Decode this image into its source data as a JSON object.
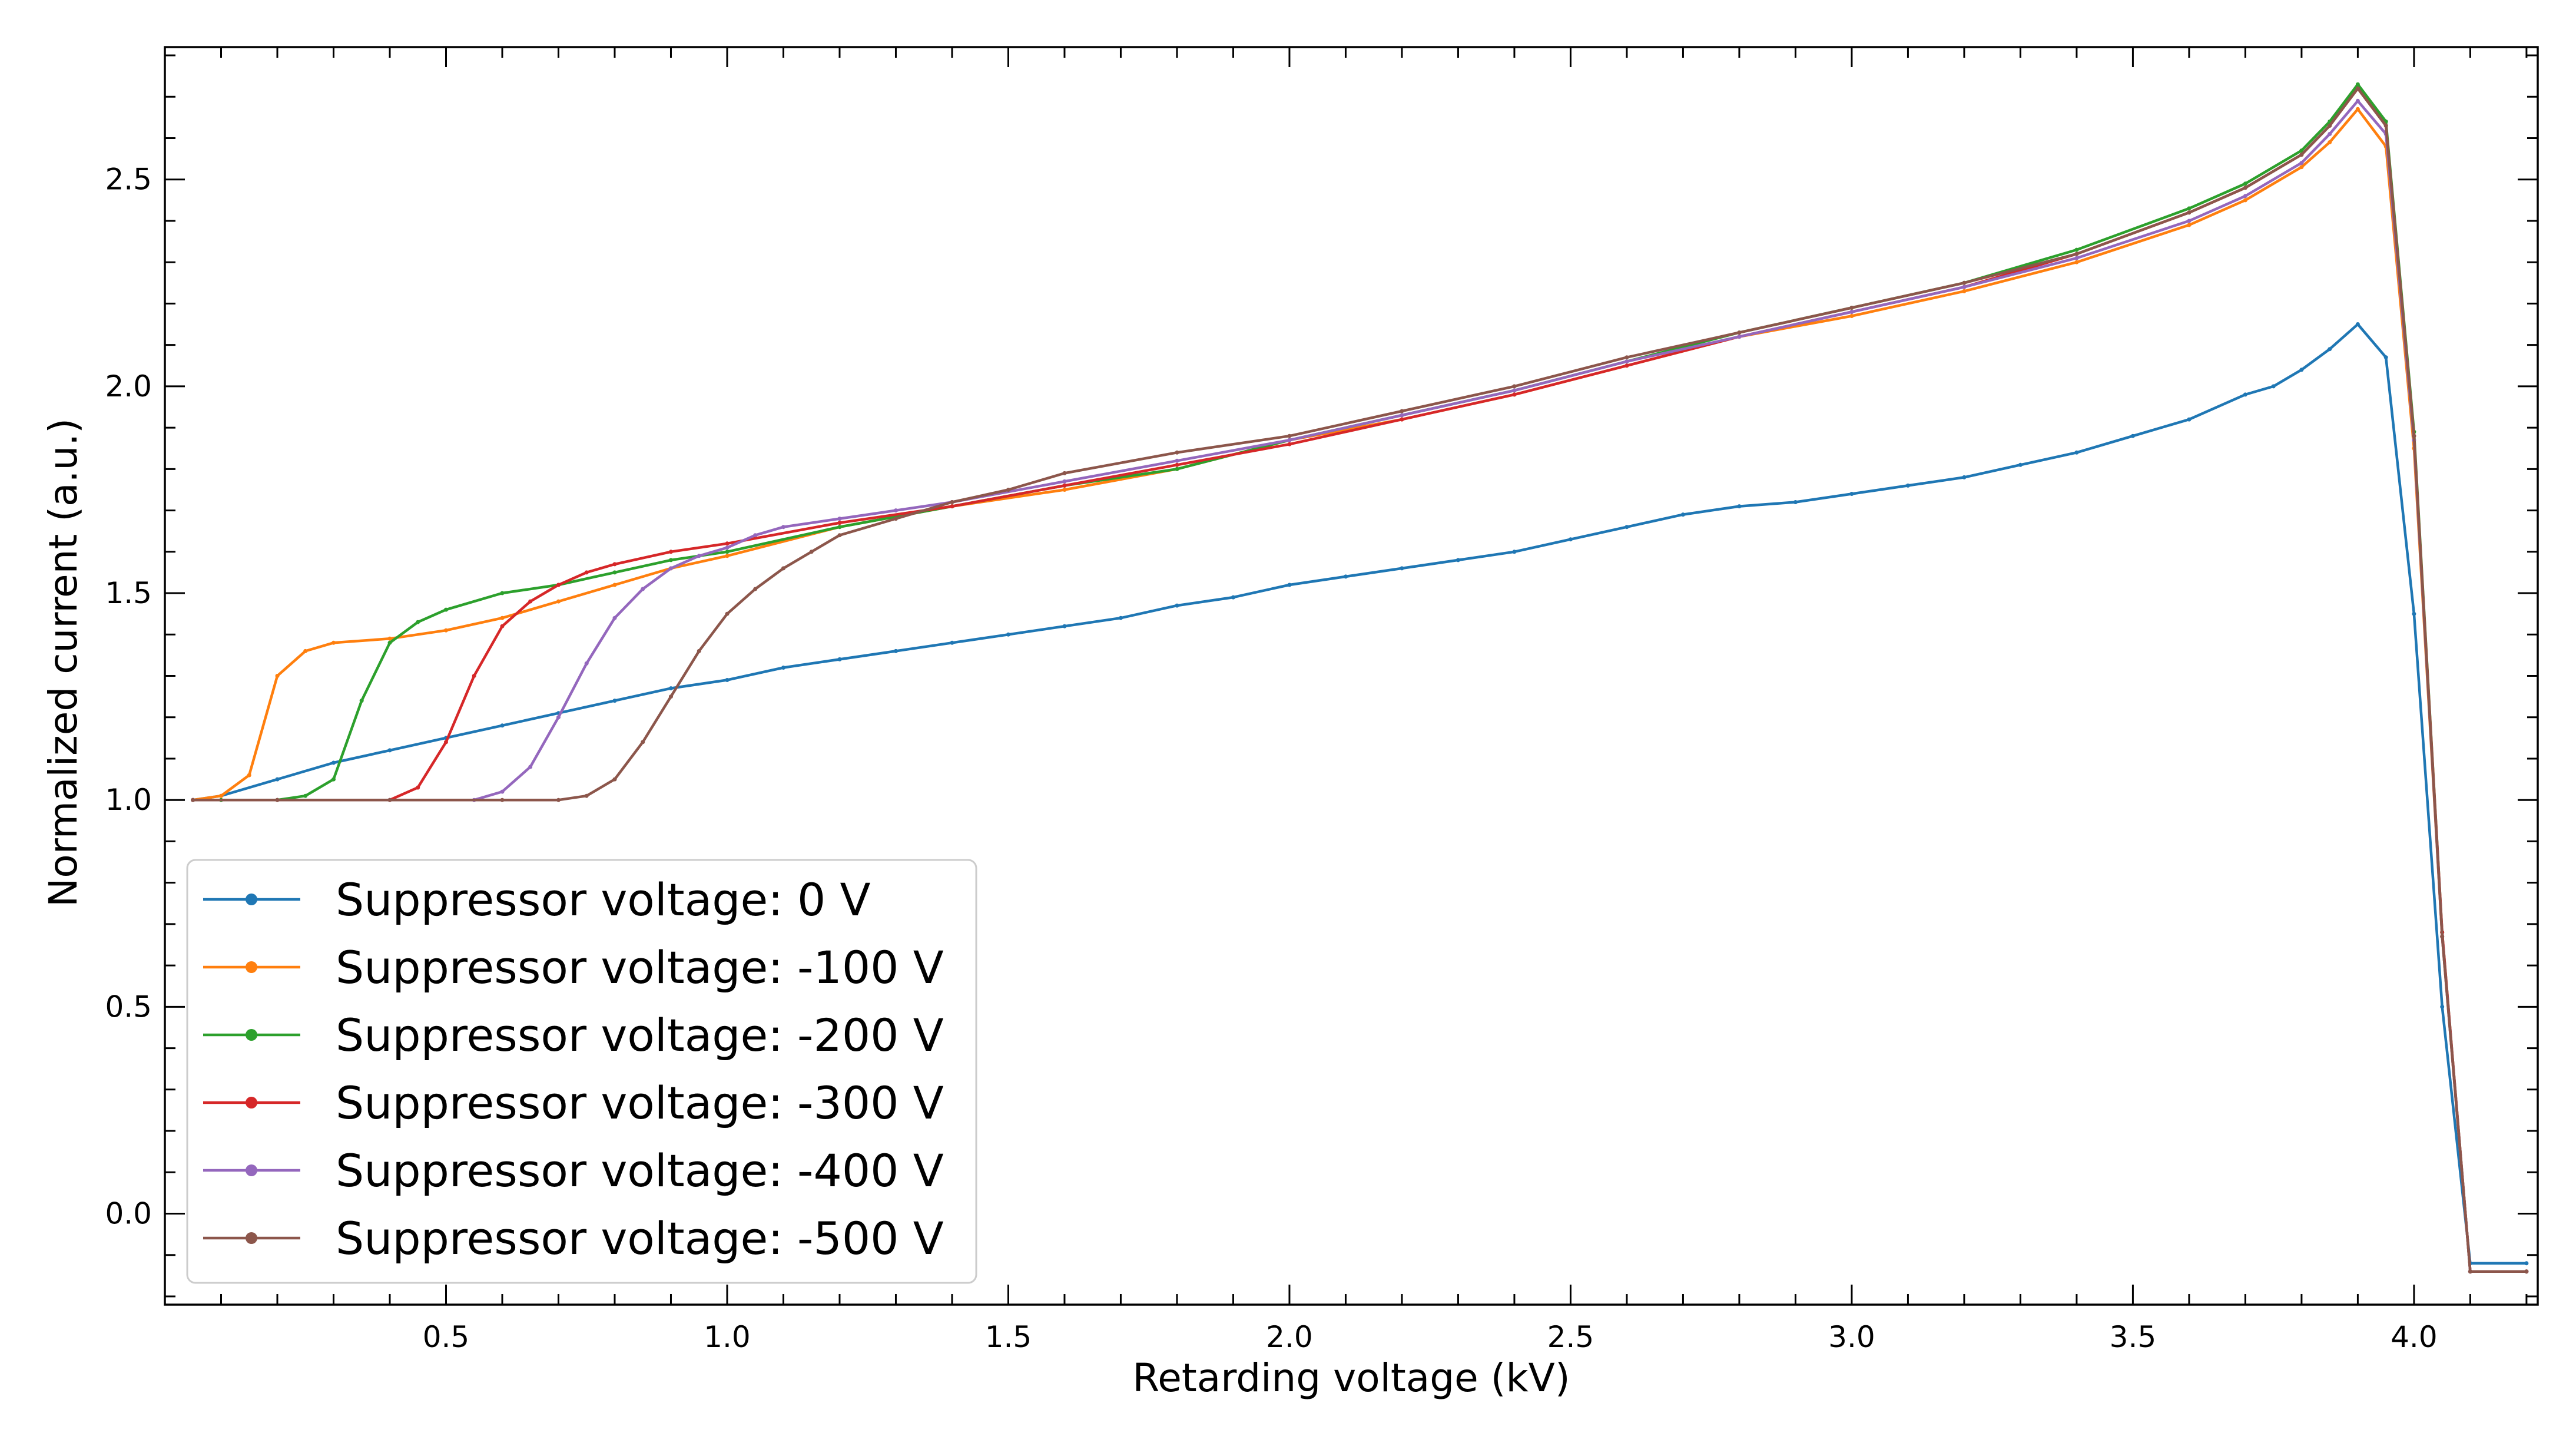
{
  "chart_data": {
    "type": "line",
    "title": "",
    "xlabel": "Retarding voltage (kV)",
    "ylabel": "Normalized current (a.u.)",
    "xlim": [
      0.0,
      4.22
    ],
    "ylim": [
      -0.22,
      2.82
    ],
    "x_ticks": [
      "0.5",
      "1.0",
      "1.5",
      "2.0",
      "2.5",
      "3.0",
      "3.5",
      "4.0"
    ],
    "y_ticks": [
      "0.0",
      "0.5",
      "1.0",
      "1.5",
      "2.0",
      "2.5"
    ],
    "grid": false,
    "legend_position": "lower-left",
    "series": [
      {
        "name": "Suppressor voltage: 0 V",
        "color": "#1f77b4",
        "points": [
          [
            0.05,
            1.0
          ],
          [
            0.1,
            1.01
          ],
          [
            0.2,
            1.05
          ],
          [
            0.3,
            1.09
          ],
          [
            0.4,
            1.12
          ],
          [
            0.5,
            1.15
          ],
          [
            0.6,
            1.18
          ],
          [
            0.7,
            1.21
          ],
          [
            0.8,
            1.24
          ],
          [
            0.9,
            1.27
          ],
          [
            1.0,
            1.29
          ],
          [
            1.1,
            1.32
          ],
          [
            1.2,
            1.34
          ],
          [
            1.3,
            1.36
          ],
          [
            1.4,
            1.38
          ],
          [
            1.5,
            1.4
          ],
          [
            1.6,
            1.42
          ],
          [
            1.7,
            1.44
          ],
          [
            1.8,
            1.47
          ],
          [
            1.9,
            1.49
          ],
          [
            2.0,
            1.52
          ],
          [
            2.1,
            1.54
          ],
          [
            2.2,
            1.56
          ],
          [
            2.3,
            1.58
          ],
          [
            2.4,
            1.6
          ],
          [
            2.5,
            1.63
          ],
          [
            2.6,
            1.66
          ],
          [
            2.7,
            1.69
          ],
          [
            2.8,
            1.71
          ],
          [
            2.9,
            1.72
          ],
          [
            3.0,
            1.74
          ],
          [
            3.1,
            1.76
          ],
          [
            3.2,
            1.78
          ],
          [
            3.3,
            1.81
          ],
          [
            3.4,
            1.84
          ],
          [
            3.5,
            1.88
          ],
          [
            3.6,
            1.92
          ],
          [
            3.7,
            1.98
          ],
          [
            3.75,
            2.0
          ],
          [
            3.8,
            2.04
          ],
          [
            3.85,
            2.09
          ],
          [
            3.9,
            2.15
          ],
          [
            3.95,
            2.07
          ],
          [
            4.0,
            1.45
          ],
          [
            4.05,
            0.5
          ],
          [
            4.1,
            -0.12
          ],
          [
            4.2,
            -0.12
          ]
        ]
      },
      {
        "name": "Suppressor voltage: -100 V",
        "color": "#ff7f0e",
        "points": [
          [
            0.05,
            1.0
          ],
          [
            0.1,
            1.01
          ],
          [
            0.15,
            1.06
          ],
          [
            0.2,
            1.3
          ],
          [
            0.25,
            1.36
          ],
          [
            0.3,
            1.38
          ],
          [
            0.4,
            1.39
          ],
          [
            0.5,
            1.41
          ],
          [
            0.6,
            1.44
          ],
          [
            0.7,
            1.48
          ],
          [
            0.8,
            1.52
          ],
          [
            0.9,
            1.56
          ],
          [
            1.0,
            1.59
          ],
          [
            1.2,
            1.66
          ],
          [
            1.4,
            1.71
          ],
          [
            1.6,
            1.75
          ],
          [
            1.8,
            1.8
          ],
          [
            2.0,
            1.87
          ],
          [
            2.2,
            1.92
          ],
          [
            2.4,
            1.98
          ],
          [
            2.6,
            2.05
          ],
          [
            2.8,
            2.12
          ],
          [
            3.0,
            2.17
          ],
          [
            3.2,
            2.23
          ],
          [
            3.4,
            2.3
          ],
          [
            3.6,
            2.39
          ],
          [
            3.7,
            2.45
          ],
          [
            3.8,
            2.53
          ],
          [
            3.85,
            2.59
          ],
          [
            3.9,
            2.67
          ],
          [
            3.95,
            2.58
          ],
          [
            4.0,
            1.85
          ],
          [
            4.05,
            0.67
          ],
          [
            4.1,
            -0.14
          ],
          [
            4.2,
            -0.14
          ]
        ]
      },
      {
        "name": "Suppressor voltage: -200 V",
        "color": "#2ca02c",
        "points": [
          [
            0.05,
            1.0
          ],
          [
            0.1,
            1.0
          ],
          [
            0.2,
            1.0
          ],
          [
            0.25,
            1.01
          ],
          [
            0.3,
            1.05
          ],
          [
            0.35,
            1.24
          ],
          [
            0.4,
            1.38
          ],
          [
            0.45,
            1.43
          ],
          [
            0.5,
            1.46
          ],
          [
            0.6,
            1.5
          ],
          [
            0.7,
            1.52
          ],
          [
            0.8,
            1.55
          ],
          [
            0.9,
            1.58
          ],
          [
            1.0,
            1.6
          ],
          [
            1.2,
            1.66
          ],
          [
            1.4,
            1.71
          ],
          [
            1.6,
            1.76
          ],
          [
            1.8,
            1.8
          ],
          [
            2.0,
            1.87
          ],
          [
            2.2,
            1.93
          ],
          [
            2.4,
            1.99
          ],
          [
            2.6,
            2.06
          ],
          [
            2.8,
            2.13
          ],
          [
            3.0,
            2.19
          ],
          [
            3.2,
            2.25
          ],
          [
            3.4,
            2.33
          ],
          [
            3.6,
            2.43
          ],
          [
            3.7,
            2.49
          ],
          [
            3.8,
            2.57
          ],
          [
            3.85,
            2.64
          ],
          [
            3.9,
            2.73
          ],
          [
            3.95,
            2.64
          ],
          [
            4.0,
            1.89
          ],
          [
            4.05,
            0.68
          ],
          [
            4.1,
            -0.14
          ],
          [
            4.2,
            -0.14
          ]
        ]
      },
      {
        "name": "Suppressor voltage: -300 V",
        "color": "#d62728",
        "points": [
          [
            0.05,
            1.0
          ],
          [
            0.2,
            1.0
          ],
          [
            0.4,
            1.0
          ],
          [
            0.45,
            1.03
          ],
          [
            0.5,
            1.14
          ],
          [
            0.55,
            1.3
          ],
          [
            0.6,
            1.42
          ],
          [
            0.65,
            1.48
          ],
          [
            0.7,
            1.52
          ],
          [
            0.75,
            1.55
          ],
          [
            0.8,
            1.57
          ],
          [
            0.9,
            1.6
          ],
          [
            1.0,
            1.62
          ],
          [
            1.2,
            1.67
          ],
          [
            1.4,
            1.71
          ],
          [
            1.6,
            1.76
          ],
          [
            1.8,
            1.81
          ],
          [
            2.0,
            1.86
          ],
          [
            2.2,
            1.92
          ],
          [
            2.4,
            1.98
          ],
          [
            2.6,
            2.05
          ],
          [
            2.8,
            2.12
          ],
          [
            3.0,
            2.18
          ],
          [
            3.2,
            2.24
          ],
          [
            3.4,
            2.32
          ],
          [
            3.6,
            2.42
          ],
          [
            3.7,
            2.48
          ],
          [
            3.8,
            2.56
          ],
          [
            3.85,
            2.63
          ],
          [
            3.9,
            2.72
          ],
          [
            3.95,
            2.63
          ],
          [
            4.0,
            1.88
          ],
          [
            4.05,
            0.68
          ],
          [
            4.1,
            -0.14
          ],
          [
            4.2,
            -0.14
          ]
        ]
      },
      {
        "name": "Suppressor voltage: -400 V",
        "color": "#9467bd",
        "points": [
          [
            0.05,
            1.0
          ],
          [
            0.2,
            1.0
          ],
          [
            0.4,
            1.0
          ],
          [
            0.55,
            1.0
          ],
          [
            0.6,
            1.02
          ],
          [
            0.65,
            1.08
          ],
          [
            0.7,
            1.2
          ],
          [
            0.75,
            1.33
          ],
          [
            0.8,
            1.44
          ],
          [
            0.85,
            1.51
          ],
          [
            0.9,
            1.56
          ],
          [
            0.95,
            1.59
          ],
          [
            1.0,
            1.61
          ],
          [
            1.05,
            1.64
          ],
          [
            1.1,
            1.66
          ],
          [
            1.2,
            1.68
          ],
          [
            1.3,
            1.7
          ],
          [
            1.4,
            1.72
          ],
          [
            1.6,
            1.77
          ],
          [
            1.8,
            1.82
          ],
          [
            2.0,
            1.87
          ],
          [
            2.2,
            1.93
          ],
          [
            2.4,
            1.99
          ],
          [
            2.6,
            2.06
          ],
          [
            2.8,
            2.12
          ],
          [
            3.0,
            2.18
          ],
          [
            3.2,
            2.24
          ],
          [
            3.4,
            2.31
          ],
          [
            3.6,
            2.4
          ],
          [
            3.7,
            2.46
          ],
          [
            3.8,
            2.54
          ],
          [
            3.85,
            2.61
          ],
          [
            3.9,
            2.69
          ],
          [
            3.95,
            2.61
          ],
          [
            4.0,
            1.87
          ],
          [
            4.05,
            0.67
          ],
          [
            4.1,
            -0.14
          ],
          [
            4.2,
            -0.14
          ]
        ]
      },
      {
        "name": "Suppressor voltage: -500 V",
        "color": "#8c564b",
        "points": [
          [
            0.05,
            1.0
          ],
          [
            0.2,
            1.0
          ],
          [
            0.4,
            1.0
          ],
          [
            0.6,
            1.0
          ],
          [
            0.7,
            1.0
          ],
          [
            0.75,
            1.01
          ],
          [
            0.8,
            1.05
          ],
          [
            0.85,
            1.14
          ],
          [
            0.9,
            1.25
          ],
          [
            0.95,
            1.36
          ],
          [
            1.0,
            1.45
          ],
          [
            1.05,
            1.51
          ],
          [
            1.1,
            1.56
          ],
          [
            1.15,
            1.6
          ],
          [
            1.2,
            1.64
          ],
          [
            1.3,
            1.68
          ],
          [
            1.4,
            1.72
          ],
          [
            1.5,
            1.75
          ],
          [
            1.6,
            1.79
          ],
          [
            1.8,
            1.84
          ],
          [
            2.0,
            1.88
          ],
          [
            2.2,
            1.94
          ],
          [
            2.4,
            2.0
          ],
          [
            2.6,
            2.07
          ],
          [
            2.8,
            2.13
          ],
          [
            3.0,
            2.19
          ],
          [
            3.2,
            2.25
          ],
          [
            3.4,
            2.32
          ],
          [
            3.6,
            2.42
          ],
          [
            3.7,
            2.48
          ],
          [
            3.8,
            2.56
          ],
          [
            3.85,
            2.63
          ],
          [
            3.9,
            2.72
          ],
          [
            3.95,
            2.63
          ],
          [
            4.0,
            1.88
          ],
          [
            4.05,
            0.67
          ],
          [
            4.1,
            -0.14
          ],
          [
            4.2,
            -0.14
          ]
        ]
      }
    ]
  }
}
